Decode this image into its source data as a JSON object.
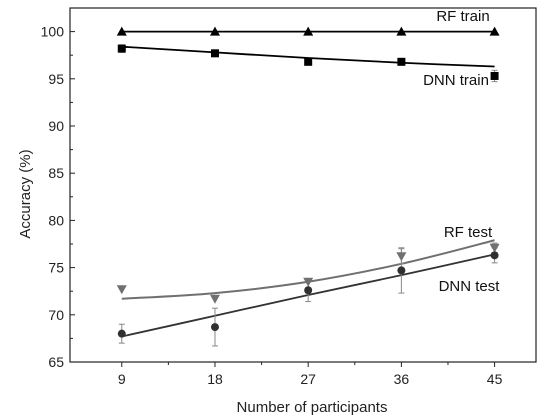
{
  "chart_data": {
    "type": "scatter",
    "xlabel": "Number of participants",
    "ylabel": "Accuracy (%)",
    "x_ticks": [
      "9",
      "18",
      "27",
      "36",
      "45"
    ],
    "y_ticks": [
      "65",
      "70",
      "75",
      "80",
      "85",
      "90",
      "95",
      "100"
    ],
    "xlim": [
      4,
      49
    ],
    "ylim": [
      65,
      102.5
    ],
    "grid": false,
    "legend": "none",
    "series": [
      {
        "name": "RF train",
        "marker": "triangle-up",
        "color": "#000000",
        "fit_color": "#000000",
        "x": [
          9,
          18,
          27,
          36,
          45
        ],
        "y": [
          100,
          100,
          100,
          100,
          100
        ],
        "err": [
          0,
          0,
          0,
          0,
          0
        ],
        "fit": [
          100,
          100,
          100,
          100,
          100
        ]
      },
      {
        "name": "DNN train",
        "marker": "square",
        "color": "#000000",
        "fit_color": "#000000",
        "x": [
          9,
          18,
          27,
          36,
          45
        ],
        "y": [
          98.2,
          97.7,
          96.8,
          96.8,
          95.3
        ],
        "err": [
          0.4,
          0.3,
          0.2,
          0.2,
          0.6
        ],
        "fit": [
          98.4,
          97.8,
          97.2,
          96.7,
          96.3
        ]
      },
      {
        "name": "RF test",
        "marker": "triangle-down",
        "color": "#707070",
        "fit_color": "#707070",
        "x": [
          9,
          18,
          27,
          36,
          45
        ],
        "y": [
          72.7,
          71.7,
          73.5,
          76.2,
          77.1
        ],
        "err": [
          0,
          0,
          0,
          0.8,
          0.5
        ],
        "fit": [
          71.7,
          72.3,
          73.5,
          75.4,
          77.9
        ]
      },
      {
        "name": "DNN test",
        "marker": "circle",
        "color": "#303030",
        "fit_color": "#333333",
        "x": [
          9,
          18,
          27,
          36,
          45
        ],
        "y": [
          68.0,
          68.7,
          72.6,
          74.7,
          76.3
        ],
        "err": [
          1.0,
          2.0,
          1.2,
          2.4,
          0.8
        ],
        "fit": [
          67.7,
          69.9,
          72.1,
          74.2,
          76.4
        ]
      }
    ]
  }
}
